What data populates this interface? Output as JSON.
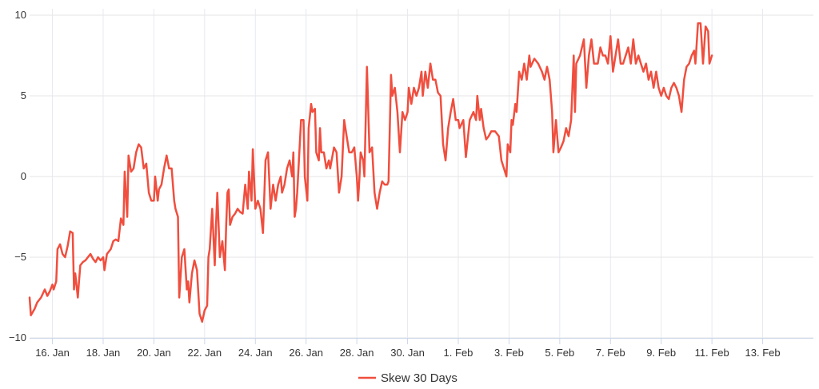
{
  "chart_data": {
    "type": "line",
    "title": "",
    "xlabel": "",
    "ylabel": "",
    "ylim": [
      -10,
      10
    ],
    "y_ticks": [
      -10,
      -5,
      0,
      5,
      10
    ],
    "y_tick_labels": [
      "−10",
      "−5",
      "0",
      "5",
      "10"
    ],
    "x_tick_labels": [
      "16. Jan",
      "18. Jan",
      "20. Jan",
      "22. Jan",
      "24. Jan",
      "26. Jan",
      "28. Jan",
      "30. Jan",
      "1. Feb",
      "3. Feb",
      "5. Feb",
      "7. Feb",
      "9. Feb",
      "11. Feb",
      "13. Feb"
    ],
    "x_tick_days": [
      0,
      2,
      4,
      6,
      8,
      10,
      12,
      14,
      16,
      18,
      20,
      22,
      24,
      26,
      28
    ],
    "x_range_days": [
      -0.9,
      30.0
    ],
    "grid": true,
    "legend_position": "bottom-center",
    "series": [
      {
        "name": "Skew 30 Days",
        "color": "#f04e3e",
        "points": [
          [
            -0.9,
            -7.5
          ],
          [
            -0.85,
            -8.6
          ],
          [
            -0.7,
            -8.2
          ],
          [
            -0.6,
            -7.8
          ],
          [
            -0.45,
            -7.5
          ],
          [
            -0.3,
            -7.0
          ],
          [
            -0.2,
            -7.4
          ],
          [
            -0.1,
            -7.1
          ],
          [
            0.0,
            -6.7
          ],
          [
            0.05,
            -7.0
          ],
          [
            0.15,
            -6.5
          ],
          [
            0.2,
            -4.5
          ],
          [
            0.3,
            -4.2
          ],
          [
            0.4,
            -4.8
          ],
          [
            0.5,
            -5.0
          ],
          [
            0.6,
            -4.3
          ],
          [
            0.7,
            -3.4
          ],
          [
            0.8,
            -3.5
          ],
          [
            0.85,
            -7.0
          ],
          [
            0.9,
            -6.0
          ],
          [
            1.0,
            -7.5
          ],
          [
            1.05,
            -6.5
          ],
          [
            1.1,
            -5.5
          ],
          [
            1.2,
            -5.3
          ],
          [
            1.3,
            -5.2
          ],
          [
            1.4,
            -5.0
          ],
          [
            1.5,
            -4.8
          ],
          [
            1.6,
            -5.1
          ],
          [
            1.7,
            -5.3
          ],
          [
            1.8,
            -5.0
          ],
          [
            1.9,
            -5.2
          ],
          [
            2.0,
            -5.0
          ],
          [
            2.05,
            -5.8
          ],
          [
            2.15,
            -4.8
          ],
          [
            2.3,
            -4.5
          ],
          [
            2.4,
            -4.0
          ],
          [
            2.5,
            -3.9
          ],
          [
            2.6,
            -4.0
          ],
          [
            2.7,
            -2.6
          ],
          [
            2.8,
            -3.0
          ],
          [
            2.85,
            0.3
          ],
          [
            2.95,
            -2.5
          ],
          [
            3.0,
            1.3
          ],
          [
            3.1,
            0.3
          ],
          [
            3.2,
            0.5
          ],
          [
            3.3,
            1.5
          ],
          [
            3.4,
            2.0
          ],
          [
            3.5,
            1.8
          ],
          [
            3.6,
            0.5
          ],
          [
            3.7,
            0.8
          ],
          [
            3.8,
            -1.0
          ],
          [
            3.9,
            -1.5
          ],
          [
            4.0,
            -1.5
          ],
          [
            4.05,
            0.0
          ],
          [
            4.15,
            -1.5
          ],
          [
            4.2,
            -0.8
          ],
          [
            4.3,
            -0.5
          ],
          [
            4.4,
            0.5
          ],
          [
            4.5,
            1.3
          ],
          [
            4.6,
            0.5
          ],
          [
            4.7,
            0.5
          ],
          [
            4.8,
            -1.5
          ],
          [
            4.85,
            -2.0
          ],
          [
            4.95,
            -2.5
          ],
          [
            5.0,
            -7.5
          ],
          [
            5.1,
            -5.0
          ],
          [
            5.2,
            -4.5
          ],
          [
            5.3,
            -7.0
          ],
          [
            5.35,
            -6.5
          ],
          [
            5.4,
            -7.8
          ],
          [
            5.5,
            -6.0
          ],
          [
            5.6,
            -5.2
          ],
          [
            5.7,
            -5.8
          ],
          [
            5.8,
            -8.5
          ],
          [
            5.9,
            -9.0
          ],
          [
            6.0,
            -8.3
          ],
          [
            6.1,
            -8.0
          ],
          [
            6.15,
            -5.0
          ],
          [
            6.2,
            -4.5
          ],
          [
            6.3,
            -2.0
          ],
          [
            6.4,
            -5.5
          ],
          [
            6.45,
            -3.0
          ],
          [
            6.5,
            -1.0
          ],
          [
            6.6,
            -5.0
          ],
          [
            6.7,
            -4.0
          ],
          [
            6.8,
            -5.8
          ],
          [
            6.85,
            -3.0
          ],
          [
            6.9,
            -1.0
          ],
          [
            6.95,
            -0.8
          ],
          [
            7.0,
            -3.0
          ],
          [
            7.1,
            -2.5
          ],
          [
            7.2,
            -2.3
          ],
          [
            7.3,
            -2.0
          ],
          [
            7.4,
            -2.2
          ],
          [
            7.5,
            -2.3
          ],
          [
            7.6,
            -0.5
          ],
          [
            7.7,
            -2.0
          ],
          [
            7.75,
            0.3
          ],
          [
            7.85,
            -1.5
          ],
          [
            7.9,
            1.7
          ],
          [
            8.0,
            -2.0
          ],
          [
            8.1,
            -1.5
          ],
          [
            8.2,
            -2.0
          ],
          [
            8.3,
            -3.5
          ],
          [
            8.4,
            1.0
          ],
          [
            8.5,
            1.5
          ],
          [
            8.6,
            -2.0
          ],
          [
            8.7,
            -0.5
          ],
          [
            8.8,
            -1.5
          ],
          [
            8.9,
            -0.5
          ],
          [
            9.0,
            0.0
          ],
          [
            9.05,
            -1.0
          ],
          [
            9.15,
            -0.5
          ],
          [
            9.25,
            0.5
          ],
          [
            9.35,
            1.0
          ],
          [
            9.45,
            0.0
          ],
          [
            9.5,
            1.5
          ],
          [
            9.55,
            -2.5
          ],
          [
            9.6,
            -2.0
          ],
          [
            9.65,
            -1.0
          ],
          [
            9.7,
            0.5
          ],
          [
            9.8,
            3.5
          ],
          [
            9.9,
            3.5
          ],
          [
            9.95,
            0.0
          ],
          [
            10.05,
            -1.5
          ],
          [
            10.1,
            3.0
          ],
          [
            10.2,
            4.5
          ],
          [
            10.25,
            4.0
          ],
          [
            10.35,
            4.2
          ],
          [
            10.4,
            1.5
          ],
          [
            10.5,
            1.0
          ],
          [
            10.55,
            3.0
          ],
          [
            10.6,
            1.5
          ],
          [
            10.7,
            1.5
          ],
          [
            10.8,
            0.5
          ],
          [
            10.9,
            1.0
          ],
          [
            10.95,
            0.5
          ],
          [
            11.1,
            1.8
          ],
          [
            11.2,
            1.5
          ],
          [
            11.3,
            -1.0
          ],
          [
            11.4,
            0.0
          ],
          [
            11.5,
            3.5
          ],
          [
            11.6,
            2.5
          ],
          [
            11.7,
            1.5
          ],
          [
            11.8,
            1.5
          ],
          [
            11.9,
            1.8
          ],
          [
            12.0,
            0.0
          ],
          [
            12.05,
            -1.5
          ],
          [
            12.1,
            -0.2
          ],
          [
            12.15,
            1.5
          ],
          [
            12.25,
            1.0
          ],
          [
            12.3,
            0.0
          ],
          [
            12.4,
            6.8
          ],
          [
            12.5,
            1.5
          ],
          [
            12.6,
            1.8
          ],
          [
            12.7,
            -1.0
          ],
          [
            12.8,
            -2.0
          ],
          [
            12.9,
            -1.0
          ],
          [
            13.0,
            -0.3
          ],
          [
            13.1,
            -0.5
          ],
          [
            13.2,
            -0.5
          ],
          [
            13.25,
            -0.3
          ],
          [
            13.35,
            6.3
          ],
          [
            13.4,
            5.0
          ],
          [
            13.5,
            5.5
          ],
          [
            13.6,
            4.0
          ],
          [
            13.7,
            1.5
          ],
          [
            13.8,
            4.0
          ],
          [
            13.9,
            3.5
          ],
          [
            14.0,
            4.0
          ],
          [
            14.05,
            5.5
          ],
          [
            14.15,
            4.5
          ],
          [
            14.25,
            5.5
          ],
          [
            14.35,
            5.0
          ],
          [
            14.45,
            5.5
          ],
          [
            14.55,
            6.5
          ],
          [
            14.6,
            5.0
          ],
          [
            14.7,
            6.5
          ],
          [
            14.8,
            5.5
          ],
          [
            14.9,
            7.0
          ],
          [
            15.0,
            6.0
          ],
          [
            15.1,
            6.0
          ],
          [
            15.2,
            5.2
          ],
          [
            15.3,
            5.0
          ],
          [
            15.4,
            2.0
          ],
          [
            15.5,
            1.0
          ],
          [
            15.6,
            3.0
          ],
          [
            15.7,
            4.0
          ],
          [
            15.8,
            4.8
          ],
          [
            15.9,
            3.5
          ],
          [
            16.0,
            3.5
          ],
          [
            16.05,
            3.0
          ],
          [
            16.2,
            3.5
          ],
          [
            16.3,
            1.2
          ],
          [
            16.45,
            3.5
          ],
          [
            16.6,
            4.0
          ],
          [
            16.7,
            3.5
          ],
          [
            16.75,
            5.0
          ],
          [
            16.85,
            3.5
          ],
          [
            16.9,
            4.2
          ],
          [
            17.0,
            3.0
          ],
          [
            17.1,
            2.3
          ],
          [
            17.2,
            2.5
          ],
          [
            17.3,
            2.8
          ],
          [
            17.45,
            2.8
          ],
          [
            17.6,
            2.5
          ],
          [
            17.7,
            1.0
          ],
          [
            17.8,
            0.5
          ],
          [
            17.9,
            0.0
          ],
          [
            17.95,
            2.0
          ],
          [
            18.05,
            1.5
          ],
          [
            18.1,
            3.5
          ],
          [
            18.15,
            3.2
          ],
          [
            18.25,
            4.5
          ],
          [
            18.3,
            4.0
          ],
          [
            18.4,
            6.5
          ],
          [
            18.5,
            6.0
          ],
          [
            18.55,
            6.5
          ],
          [
            18.6,
            7.0
          ],
          [
            18.7,
            6.0
          ],
          [
            18.8,
            7.5
          ],
          [
            18.85,
            6.8
          ],
          [
            19.0,
            7.3
          ],
          [
            19.15,
            7.0
          ],
          [
            19.3,
            6.5
          ],
          [
            19.4,
            6.0
          ],
          [
            19.5,
            6.8
          ],
          [
            19.6,
            6.0
          ],
          [
            19.7,
            4.0
          ],
          [
            19.75,
            1.5
          ],
          [
            19.85,
            3.5
          ],
          [
            19.95,
            1.5
          ],
          [
            20.05,
            1.8
          ],
          [
            20.15,
            2.2
          ],
          [
            20.25,
            3.0
          ],
          [
            20.35,
            2.5
          ],
          [
            20.45,
            3.5
          ],
          [
            20.55,
            7.5
          ],
          [
            20.6,
            4.0
          ],
          [
            20.65,
            7.0
          ],
          [
            20.8,
            7.5
          ],
          [
            20.95,
            8.5
          ],
          [
            21.05,
            5.5
          ],
          [
            21.15,
            7.5
          ],
          [
            21.25,
            8.5
          ],
          [
            21.35,
            7.0
          ],
          [
            21.5,
            7.0
          ],
          [
            21.6,
            8.0
          ],
          [
            21.7,
            7.5
          ],
          [
            21.8,
            7.5
          ],
          [
            21.9,
            7.0
          ],
          [
            22.0,
            8.7
          ],
          [
            22.1,
            6.5
          ],
          [
            22.2,
            7.5
          ],
          [
            22.3,
            8.5
          ],
          [
            22.4,
            7.0
          ],
          [
            22.5,
            7.0
          ],
          [
            22.6,
            7.5
          ],
          [
            22.7,
            8.0
          ],
          [
            22.8,
            7.0
          ],
          [
            22.9,
            8.5
          ],
          [
            23.0,
            7.0
          ],
          [
            23.1,
            7.5
          ],
          [
            23.2,
            7.0
          ],
          [
            23.3,
            6.5
          ],
          [
            23.4,
            7.0
          ],
          [
            23.5,
            6.0
          ],
          [
            23.6,
            6.5
          ],
          [
            23.7,
            5.5
          ],
          [
            23.8,
            6.5
          ],
          [
            23.9,
            5.5
          ],
          [
            24.0,
            5.0
          ],
          [
            24.1,
            5.5
          ],
          [
            24.2,
            5.0
          ],
          [
            24.3,
            4.8
          ],
          [
            24.4,
            5.5
          ],
          [
            24.5,
            5.8
          ],
          [
            24.6,
            5.5
          ],
          [
            24.7,
            5.0
          ],
          [
            24.8,
            4.0
          ],
          [
            24.9,
            6.0
          ],
          [
            25.0,
            6.8
          ],
          [
            25.1,
            7.0
          ],
          [
            25.2,
            7.5
          ],
          [
            25.3,
            7.8
          ],
          [
            25.35,
            7.0
          ],
          [
            25.45,
            9.5
          ],
          [
            25.55,
            9.5
          ],
          [
            25.65,
            7.0
          ],
          [
            25.75,
            9.3
          ],
          [
            25.85,
            9.0
          ],
          [
            25.9,
            7.0
          ],
          [
            26.0,
            7.5
          ]
        ]
      }
    ]
  }
}
